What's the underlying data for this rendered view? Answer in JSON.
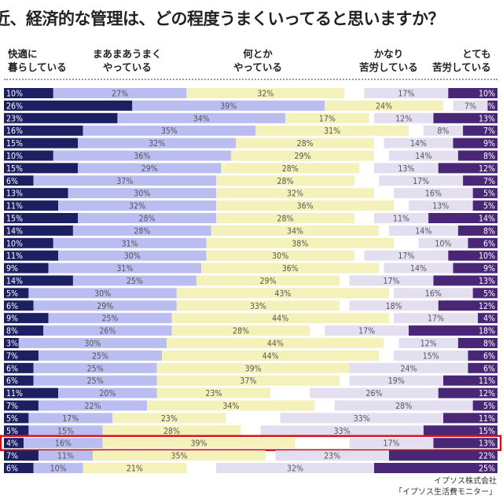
{
  "chart_data": {
    "type": "bar",
    "orientation": "horizontal-stacked-100",
    "title": "近、経済的な管理は、どの程度うまくいってると思いますか？",
    "legend": [
      "快適に暮らしている",
      "まあまあうまくやっている",
      "何とかやっている",
      "かなり苦労している",
      "とても苦労している"
    ],
    "legend_placement": "top",
    "colors": [
      "#1c2062",
      "#b9bdef",
      "#f4f1ba",
      "#e4def1",
      "#4a2677"
    ],
    "highlight_color": "#d3151d",
    "highlight_row": 28,
    "series": [
      [
        10,
        27,
        32,
        17,
        10
      ],
      [
        26,
        39,
        24,
        7,
        2
      ],
      [
        23,
        34,
        17,
        12,
        13
      ],
      [
        16,
        35,
        31,
        8,
        7
      ],
      [
        15,
        32,
        28,
        14,
        9
      ],
      [
        10,
        36,
        29,
        14,
        8
      ],
      [
        15,
        29,
        28,
        13,
        12
      ],
      [
        6,
        37,
        28,
        17,
        7
      ],
      [
        13,
        30,
        32,
        16,
        5
      ],
      [
        11,
        32,
        36,
        13,
        5
      ],
      [
        15,
        28,
        28,
        11,
        14
      ],
      [
        14,
        28,
        34,
        14,
        8
      ],
      [
        10,
        31,
        38,
        10,
        6
      ],
      [
        11,
        30,
        30,
        17,
        10
      ],
      [
        9,
        31,
        36,
        14,
        9
      ],
      [
        14,
        25,
        29,
        17,
        13
      ],
      [
        5,
        30,
        43,
        16,
        5
      ],
      [
        6,
        29,
        33,
        18,
        12
      ],
      [
        9,
        25,
        44,
        17,
        4
      ],
      [
        8,
        26,
        28,
        17,
        18
      ],
      [
        3,
        30,
        44,
        12,
        8
      ],
      [
        7,
        25,
        44,
        15,
        6
      ],
      [
        6,
        25,
        39,
        24,
        6
      ],
      [
        6,
        25,
        37,
        19,
        11
      ],
      [
        11,
        20,
        23,
        26,
        12
      ],
      [
        7,
        22,
        34,
        28,
        5
      ],
      [
        5,
        17,
        23,
        33,
        11
      ],
      [
        5,
        15,
        28,
        33,
        15
      ],
      [
        4,
        16,
        39,
        17,
        13
      ],
      [
        7,
        11,
        35,
        23,
        22
      ],
      [
        6,
        10,
        21,
        32,
        25
      ]
    ],
    "unit": "%"
  },
  "headers": {
    "h1": [
      "快適に",
      "暮らしている"
    ],
    "h2": [
      "まあまあうまく",
      "やっている"
    ],
    "h3": [
      "何とか",
      "やっている"
    ],
    "h4": [
      "かなり",
      "苦労している"
    ],
    "h5": [
      "とても",
      "苦労している"
    ]
  },
  "source": [
    "イプソス株式会社",
    "「イプソス生活費モニター」"
  ]
}
